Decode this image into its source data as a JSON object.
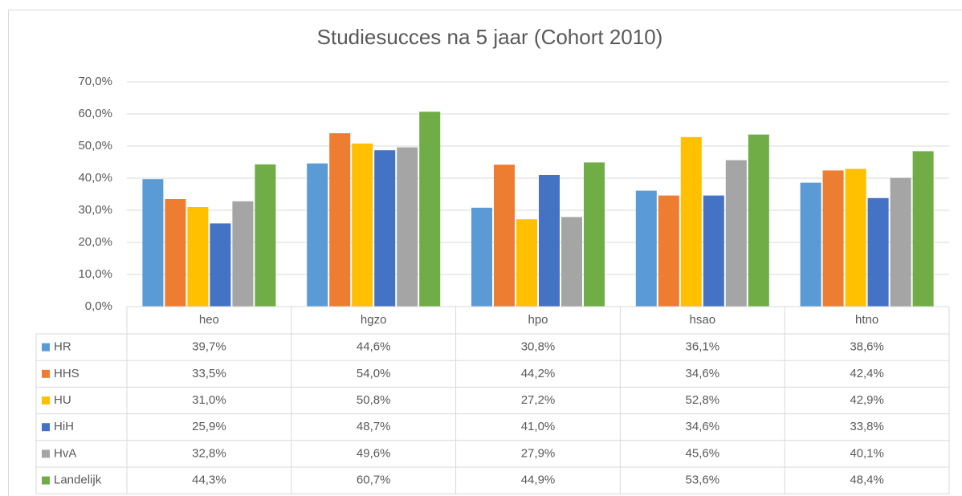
{
  "chart_data": {
    "type": "bar",
    "title": "Studiesucces na 5 jaar (Cohort 2010)",
    "categories": [
      "heo",
      "hgzo",
      "hpo",
      "hsao",
      "htno"
    ],
    "series": [
      {
        "name": "HR",
        "color": "#5b9bd5",
        "values": [
          39.7,
          44.6,
          30.8,
          36.1,
          38.6
        ],
        "value_labels": [
          "39,7%",
          "44,6%",
          "30,8%",
          "36,1%",
          "38,6%"
        ]
      },
      {
        "name": "HHS",
        "color": "#ed7d31",
        "values": [
          33.5,
          54.0,
          44.2,
          34.6,
          42.4
        ],
        "value_labels": [
          "33,5%",
          "54,0%",
          "44,2%",
          "34,6%",
          "42,4%"
        ]
      },
      {
        "name": "HU",
        "color": "#ffc000",
        "values": [
          31.0,
          50.8,
          27.2,
          52.8,
          42.9
        ],
        "value_labels": [
          "31,0%",
          "50,8%",
          "27,2%",
          "52,8%",
          "42,9%"
        ]
      },
      {
        "name": "HiH",
        "color": "#4472c4",
        "values": [
          25.9,
          48.7,
          41.0,
          34.6,
          33.8
        ],
        "value_labels": [
          "25,9%",
          "48,7%",
          "41,0%",
          "34,6%",
          "33,8%"
        ]
      },
      {
        "name": "HvA",
        "color": "#a5a5a5",
        "values": [
          32.8,
          49.6,
          27.9,
          45.6,
          40.1
        ],
        "value_labels": [
          "32,8%",
          "49,6%",
          "27,9%",
          "45,6%",
          "40,1%"
        ]
      },
      {
        "name": "Landelijk",
        "color": "#70ad47",
        "values": [
          44.3,
          60.7,
          44.9,
          53.6,
          48.4
        ],
        "value_labels": [
          "44,3%",
          "60,7%",
          "44,9%",
          "53,6%",
          "48,4%"
        ]
      }
    ],
    "ylim": [
      0,
      70
    ],
    "yticks": [
      {
        "value": 0,
        "label": "0,0%"
      },
      {
        "value": 10,
        "label": "10,0%"
      },
      {
        "value": 20,
        "label": "20,0%"
      },
      {
        "value": 30,
        "label": "30,0%"
      },
      {
        "value": 40,
        "label": "40,0%"
      },
      {
        "value": 50,
        "label": "50,0%"
      },
      {
        "value": 60,
        "label": "60,0%"
      },
      {
        "value": 70,
        "label": "70,0%"
      }
    ],
    "grid": true
  }
}
